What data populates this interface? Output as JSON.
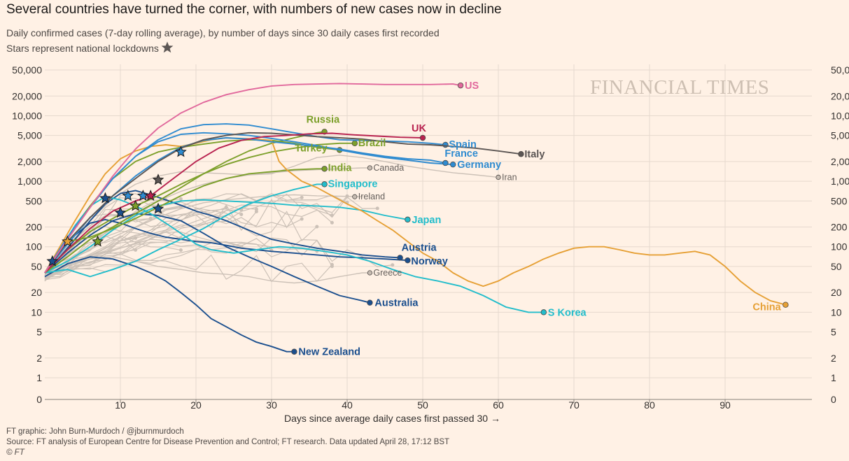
{
  "header": {
    "title": "Several countries have turned the corner, with numbers of new cases now in decline",
    "subtitle": "Daily confirmed cases (7-day rolling average), by number of days since 30 daily cases first recorded",
    "subtitle2": "Stars represent national lockdowns"
  },
  "watermark": "FINANCIAL TIMES",
  "footer": {
    "credit": "FT graphic: John Burn-Murdoch / @jburnmurdoch",
    "source": "Source: FT analysis of European Centre for Disease Prevention and Control; FT research. Data updated April 28, 17:12 BST",
    "copyright": "© FT"
  },
  "colors": {
    "background": "#fff1e5",
    "grid": "#e6d9ce",
    "grey_lines": "#ccc1b7",
    "US": "#e1689c",
    "UK": "#b8224f",
    "Italy": "#5c5654",
    "Spain": "#2f8bd0",
    "France": "#2f8bd0",
    "Germany": "#2f8bd0",
    "Russia": "#7da02b",
    "Brazil": "#7da02b",
    "Turkey": "#7da02b",
    "India": "#7da02b",
    "Singapore": "#22bdcb",
    "Japan": "#22bdcb",
    "S Korea": "#22bdcb",
    "Austria": "#1b4f8e",
    "Norway": "#1b4f8e",
    "Australia": "#1b4f8e",
    "New Zealand": "#1b4f8e",
    "China": "#e6a035",
    "Canada": "#8a827c",
    "Iran": "#8a827c",
    "Ireland": "#8a827c",
    "Greece": "#8a827c"
  },
  "chart_data": {
    "type": "line",
    "xlabel": "Days since average daily cases first passed 30",
    "xlabel_arrow": "→",
    "xlim": [
      0,
      100
    ],
    "xticks": [
      10,
      20,
      30,
      40,
      50,
      60,
      70,
      80,
      90
    ],
    "yscale": "log",
    "ylim": [
      1,
      50000
    ],
    "yticks": [
      1,
      2,
      5,
      10,
      20,
      50,
      100,
      200,
      500,
      1000,
      2000,
      5000,
      10000,
      20000,
      50000
    ],
    "ytick_labels": [
      "1",
      "2",
      "5",
      "10",
      "20",
      "50",
      "100",
      "200",
      "500",
      "1,000",
      "2,000",
      "5,000",
      "10,000",
      "20,000",
      "50,000"
    ],
    "zero_label": "0",
    "legend": "direct labels",
    "series": [
      {
        "name": "US",
        "x": [
          0,
          3,
          6,
          9,
          12,
          15,
          18,
          21,
          24,
          27,
          30,
          33,
          36,
          39,
          42,
          45,
          48,
          51,
          54,
          55
        ],
        "y": [
          40,
          130,
          400,
          1200,
          3100,
          6500,
          11000,
          16000,
          21000,
          25000,
          28500,
          30000,
          30500,
          31000,
          30500,
          30000,
          30000,
          30000,
          30500,
          29000
        ],
        "lockdown": null
      },
      {
        "name": "UK",
        "x": [
          0,
          3,
          6,
          9,
          12,
          14,
          17,
          20,
          23,
          26,
          29,
          32,
          35,
          38,
          41,
          44,
          47,
          50
        ],
        "y": [
          40,
          90,
          190,
          350,
          500,
          600,
          1100,
          2000,
          3200,
          4200,
          4800,
          5000,
          5300,
          5400,
          5100,
          4900,
          4700,
          4600
        ],
        "lockdown": [
          14,
          600
        ]
      },
      {
        "name": "Italy",
        "x": [
          0,
          3,
          6,
          9,
          12,
          15,
          18,
          21,
          24,
          27,
          30,
          33,
          36,
          39,
          42,
          45,
          48,
          51,
          54,
          57,
          60,
          63
        ],
        "y": [
          40,
          120,
          280,
          600,
          1100,
          2000,
          3200,
          4300,
          5000,
          5500,
          5400,
          5100,
          4800,
          4600,
          4400,
          4000,
          3700,
          3600,
          3400,
          3200,
          2900,
          2600
        ],
        "lockdown": [
          15,
          1050
        ]
      },
      {
        "name": "Spain",
        "x": [
          0,
          3,
          6,
          9,
          12,
          15,
          18,
          21,
          24,
          27,
          30,
          33,
          36,
          39,
          42,
          45,
          48,
          51,
          53
        ],
        "y": [
          40,
          140,
          400,
          1100,
          2400,
          4300,
          6300,
          7300,
          7500,
          7200,
          6300,
          5500,
          4800,
          4300,
          4200,
          4100,
          4000,
          3800,
          3600
        ],
        "lockdown": [
          11,
          600
        ]
      },
      {
        "name": "France",
        "x": [
          0,
          3,
          6,
          9,
          12,
          15,
          18,
          21,
          24,
          27,
          30,
          33,
          36,
          39,
          42,
          45,
          48,
          51,
          53
        ],
        "y": [
          40,
          110,
          280,
          600,
          1200,
          2100,
          3300,
          4200,
          4600,
          4400,
          4000,
          3700,
          3400,
          3100,
          2700,
          2400,
          2200,
          2100,
          1900
        ],
        "lockdown": [
          13,
          600
        ]
      },
      {
        "name": "Germany",
        "x": [
          0,
          3,
          6,
          9,
          12,
          15,
          18,
          21,
          24,
          27,
          30,
          33,
          36,
          39,
          42,
          45,
          48,
          51,
          54
        ],
        "y": [
          40,
          130,
          400,
          1100,
          2400,
          4000,
          5200,
          5500,
          5300,
          5000,
          4500,
          4000,
          3500,
          3000,
          2600,
          2300,
          2100,
          1900,
          1800
        ],
        "lockdown": [
          18,
          2800
        ]
      },
      {
        "name": "Russia",
        "x": [
          0,
          3,
          6,
          9,
          12,
          15,
          18,
          21,
          24,
          27,
          30,
          33,
          36,
          37
        ],
        "y": [
          40,
          70,
          130,
          200,
          320,
          500,
          800,
          1300,
          2000,
          2900,
          3800,
          4600,
          5500,
          5700
        ],
        "lockdown": null
      },
      {
        "name": "Brazil",
        "x": [
          0,
          3,
          6,
          9,
          12,
          15,
          18,
          21,
          24,
          27,
          30,
          33,
          36,
          39,
          41
        ],
        "y": [
          40,
          90,
          170,
          270,
          420,
          600,
          900,
          1300,
          1800,
          2300,
          2800,
          3200,
          3600,
          3800,
          3800
        ],
        "lockdown": null
      },
      {
        "name": "Turkey",
        "x": [
          0,
          3,
          6,
          9,
          12,
          15,
          18,
          21,
          24,
          27,
          30,
          33,
          36,
          39
        ],
        "y": [
          40,
          130,
          420,
          1100,
          2000,
          2800,
          3300,
          3700,
          4100,
          4300,
          4200,
          3800,
          3300,
          3000
        ],
        "lockdown": [
          12,
          420
        ]
      },
      {
        "name": "India",
        "x": [
          0,
          3,
          6,
          9,
          12,
          15,
          18,
          21,
          24,
          27,
          30,
          33,
          36,
          37
        ],
        "y": [
          40,
          120,
          140,
          190,
          270,
          400,
          600,
          850,
          1100,
          1300,
          1400,
          1500,
          1550,
          1550
        ],
        "lockdown": [
          7,
          120
        ]
      },
      {
        "name": "Singapore",
        "x": [
          0,
          3,
          6,
          9,
          12,
          15,
          18,
          21,
          24,
          27,
          30,
          33,
          36,
          37
        ],
        "y": [
          40,
          45,
          35,
          45,
          60,
          90,
          130,
          190,
          300,
          450,
          600,
          750,
          900,
          900
        ],
        "lockdown": null
      },
      {
        "name": "Japan",
        "x": [
          0,
          3,
          6,
          9,
          12,
          15,
          18,
          21,
          24,
          27,
          30,
          33,
          36,
          39,
          42,
          45,
          48
        ],
        "y": [
          40,
          60,
          100,
          180,
          300,
          420,
          500,
          520,
          500,
          480,
          460,
          430,
          420,
          400,
          360,
          300,
          260
        ],
        "lockdown": null
      },
      {
        "name": "S Korea",
        "x": [
          0,
          2,
          4,
          6,
          8,
          10,
          12,
          14,
          16,
          18,
          20,
          22,
          25,
          28,
          31,
          34,
          37,
          40,
          43,
          46,
          49,
          52,
          55,
          58,
          61,
          64,
          66
        ],
        "y": [
          40,
          90,
          210,
          420,
          580,
          520,
          420,
          320,
          230,
          160,
          110,
          90,
          80,
          90,
          100,
          95,
          85,
          75,
          60,
          45,
          35,
          30,
          25,
          18,
          12,
          10,
          10
        ],
        "lockdown": null
      },
      {
        "name": "Austria",
        "x": [
          0,
          2,
          4,
          6,
          8,
          10,
          12,
          14,
          16,
          18,
          20,
          22,
          24,
          26,
          28,
          30,
          33,
          36,
          39,
          42,
          45,
          47
        ],
        "y": [
          40,
          70,
          130,
          250,
          450,
          650,
          720,
          620,
          520,
          430,
          350,
          300,
          250,
          200,
          160,
          130,
          110,
          95,
          85,
          75,
          70,
          68
        ],
        "lockdown": [
          8,
          550
        ]
      },
      {
        "name": "Norway",
        "x": [
          0,
          2,
          4,
          6,
          8,
          10,
          12,
          14,
          16,
          18,
          20,
          22,
          24,
          26,
          28,
          30,
          33,
          36,
          39,
          42,
          45,
          48
        ],
        "y": [
          40,
          80,
          150,
          230,
          260,
          230,
          190,
          160,
          140,
          130,
          120,
          115,
          105,
          95,
          90,
          85,
          80,
          75,
          70,
          68,
          65,
          62
        ],
        "lockdown": [
          10,
          330
        ]
      },
      {
        "name": "Australia",
        "x": [
          0,
          3,
          6,
          9,
          12,
          15,
          18,
          21,
          24,
          27,
          30,
          33,
          36,
          39,
          42,
          43
        ],
        "y": [
          40,
          80,
          150,
          250,
          320,
          300,
          250,
          160,
          100,
          70,
          50,
          35,
          25,
          18,
          15,
          14
        ],
        "lockdown": [
          15,
          380
        ]
      },
      {
        "name": "New Zealand",
        "x": [
          0,
          3,
          6,
          9,
          12,
          14,
          16,
          18,
          20,
          22,
          24,
          26,
          28,
          30,
          32,
          33
        ],
        "y": [
          35,
          55,
          70,
          65,
          50,
          40,
          30,
          20,
          13,
          8,
          6,
          4.5,
          3.5,
          3,
          2.5,
          2.5
        ],
        "lockdown": [
          1,
          60
        ]
      },
      {
        "name": "China",
        "x": [
          0,
          2,
          4,
          6,
          8,
          10,
          12,
          14,
          16,
          18,
          20,
          22,
          24,
          26,
          28,
          30,
          31,
          32,
          34,
          36,
          38,
          40,
          42,
          44,
          46,
          48,
          50,
          52,
          54,
          56,
          58,
          60,
          62,
          64,
          66,
          68,
          70,
          72,
          74,
          76,
          78,
          80,
          82,
          84,
          86,
          88,
          90,
          92,
          94,
          96,
          98
        ],
        "y": [
          40,
          100,
          250,
          600,
          1300,
          2200,
          2900,
          3400,
          3600,
          3400,
          3800,
          4300,
          4600,
          4500,
          4400,
          4200,
          2000,
          1500,
          1000,
          800,
          600,
          450,
          350,
          250,
          180,
          120,
          80,
          60,
          40,
          30,
          25,
          30,
          40,
          50,
          65,
          80,
          95,
          100,
          100,
          90,
          80,
          75,
          75,
          80,
          85,
          75,
          50,
          30,
          20,
          15,
          13
        ],
        "lockdown": [
          3,
          120
        ]
      },
      {
        "name": "Canada",
        "x": [
          0,
          3,
          6,
          9,
          12,
          15,
          18,
          21,
          24,
          27,
          30,
          33,
          36,
          39,
          42,
          43
        ],
        "y": [
          40,
          60,
          110,
          200,
          330,
          500,
          700,
          900,
          1100,
          1250,
          1350,
          1450,
          1500,
          1550,
          1600,
          1600
        ],
        "lockdown": null
      },
      {
        "name": "Iran",
        "x": [
          0,
          3,
          6,
          9,
          12,
          15,
          18,
          21,
          24,
          27,
          30,
          33,
          36,
          39,
          42,
          45,
          48,
          51,
          54,
          57,
          60
        ],
        "y": [
          40,
          100,
          250,
          550,
          900,
          1200,
          1400,
          1350,
          1300,
          1250,
          1300,
          1700,
          2300,
          2500,
          2300,
          2000,
          1700,
          1500,
          1350,
          1250,
          1150
        ],
        "lockdown": null
      },
      {
        "name": "Ireland",
        "x": [
          0,
          3,
          6,
          9,
          12,
          15,
          18,
          21,
          24,
          27,
          30,
          33,
          36,
          39,
          42,
          41
        ],
        "y": [
          40,
          60,
          90,
          140,
          200,
          280,
          380,
          470,
          520,
          560,
          600,
          620,
          600,
          590,
          580,
          580
        ],
        "lockdown": null
      },
      {
        "name": "Greece",
        "x": [
          0,
          3,
          6,
          9,
          12,
          15,
          18,
          21,
          24,
          27,
          30,
          33,
          36,
          39,
          42,
          43
        ],
        "y": [
          35,
          50,
          65,
          70,
          60,
          50,
          45,
          40,
          38,
          35,
          30,
          28,
          30,
          35,
          40,
          40
        ],
        "lockdown": null
      }
    ],
    "direct_labels": [
      "US",
      "UK",
      "Italy",
      "Spain",
      "France",
      "Germany",
      "Russia",
      "Brazil",
      "Turkey",
      "India",
      "Singapore",
      "Japan",
      "S Korea",
      "Austria",
      "Norway",
      "Australia",
      "New Zealand",
      "China",
      "Canada",
      "Iran",
      "Ireland",
      "Greece"
    ]
  }
}
